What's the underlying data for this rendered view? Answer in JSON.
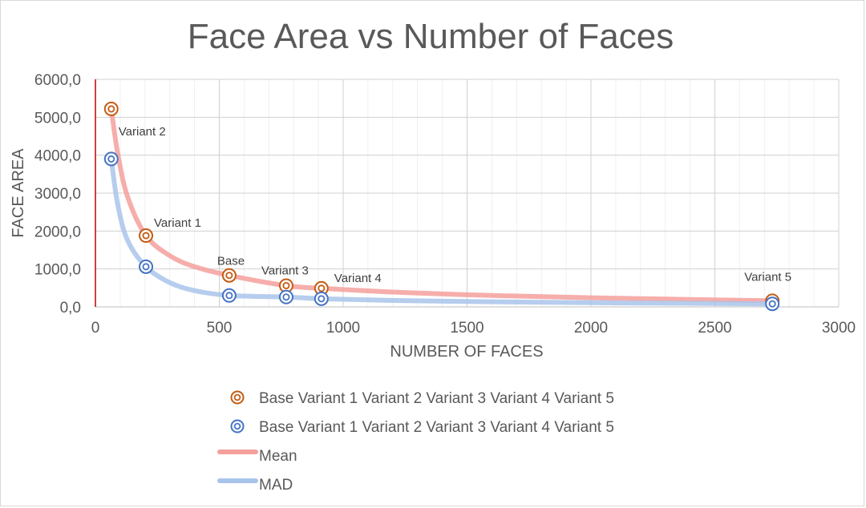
{
  "chart_data": {
    "type": "scatter",
    "title": "Face Area vs Number of Faces",
    "xlabel": "NUMBER OF FACES",
    "ylabel": "FACE AREA",
    "xlim": [
      0,
      3000
    ],
    "ylim": [
      0,
      6000
    ],
    "x_ticks": [
      "0",
      "500",
      "1000",
      "1500",
      "2000",
      "2500",
      "3000"
    ],
    "y_ticks": [
      "0,0",
      "1000,0",
      "2000,0",
      "3000,0",
      "4000,0",
      "5000,0",
      "6000,0"
    ],
    "grid": true,
    "legend_position": "bottom",
    "point_labels": [
      "Variant 2",
      "Variant 1",
      "Base",
      "Variant 3",
      "Variant 4",
      "Variant 5"
    ],
    "series": [
      {
        "name": "Base Variant 1 Variant 2 Variant 3 Variant 4 Variant 5",
        "kind": "scatter",
        "color": "#c55a11",
        "points": [
          {
            "x": 64,
            "y": 5220
          },
          {
            "x": 204,
            "y": 1880
          },
          {
            "x": 540,
            "y": 830
          },
          {
            "x": 770,
            "y": 560
          },
          {
            "x": 912,
            "y": 490
          },
          {
            "x": 2732,
            "y": 160
          }
        ]
      },
      {
        "name": "Base Variant 1 Variant 2 Variant 3 Variant 4 Variant 5",
        "kind": "scatter",
        "color": "#4472c4",
        "points": [
          {
            "x": 64,
            "y": 3900
          },
          {
            "x": 204,
            "y": 1060
          },
          {
            "x": 540,
            "y": 300
          },
          {
            "x": 770,
            "y": 260
          },
          {
            "x": 912,
            "y": 215
          },
          {
            "x": 2732,
            "y": 80
          }
        ]
      },
      {
        "name": "Mean",
        "kind": "line",
        "color": "#f4a09c",
        "points": [
          {
            "x": 64,
            "y": 5220
          },
          {
            "x": 90,
            "y": 4050
          },
          {
            "x": 130,
            "y": 2900
          },
          {
            "x": 204,
            "y": 1880
          },
          {
            "x": 300,
            "y": 1350
          },
          {
            "x": 400,
            "y": 1060
          },
          {
            "x": 540,
            "y": 830
          },
          {
            "x": 770,
            "y": 560
          },
          {
            "x": 912,
            "y": 490
          },
          {
            "x": 1200,
            "y": 390
          },
          {
            "x": 1600,
            "y": 300
          },
          {
            "x": 2000,
            "y": 240
          },
          {
            "x": 2400,
            "y": 195
          },
          {
            "x": 2732,
            "y": 160
          }
        ]
      },
      {
        "name": "MAD",
        "kind": "line",
        "color": "#a9c4eb",
        "points": [
          {
            "x": 64,
            "y": 3900
          },
          {
            "x": 90,
            "y": 2700
          },
          {
            "x": 130,
            "y": 1750
          },
          {
            "x": 204,
            "y": 1060
          },
          {
            "x": 300,
            "y": 640
          },
          {
            "x": 400,
            "y": 430
          },
          {
            "x": 540,
            "y": 300
          },
          {
            "x": 770,
            "y": 260
          },
          {
            "x": 912,
            "y": 215
          },
          {
            "x": 1200,
            "y": 170
          },
          {
            "x": 1600,
            "y": 135
          },
          {
            "x": 2000,
            "y": 110
          },
          {
            "x": 2400,
            "y": 95
          },
          {
            "x": 2732,
            "y": 80
          }
        ]
      }
    ]
  }
}
